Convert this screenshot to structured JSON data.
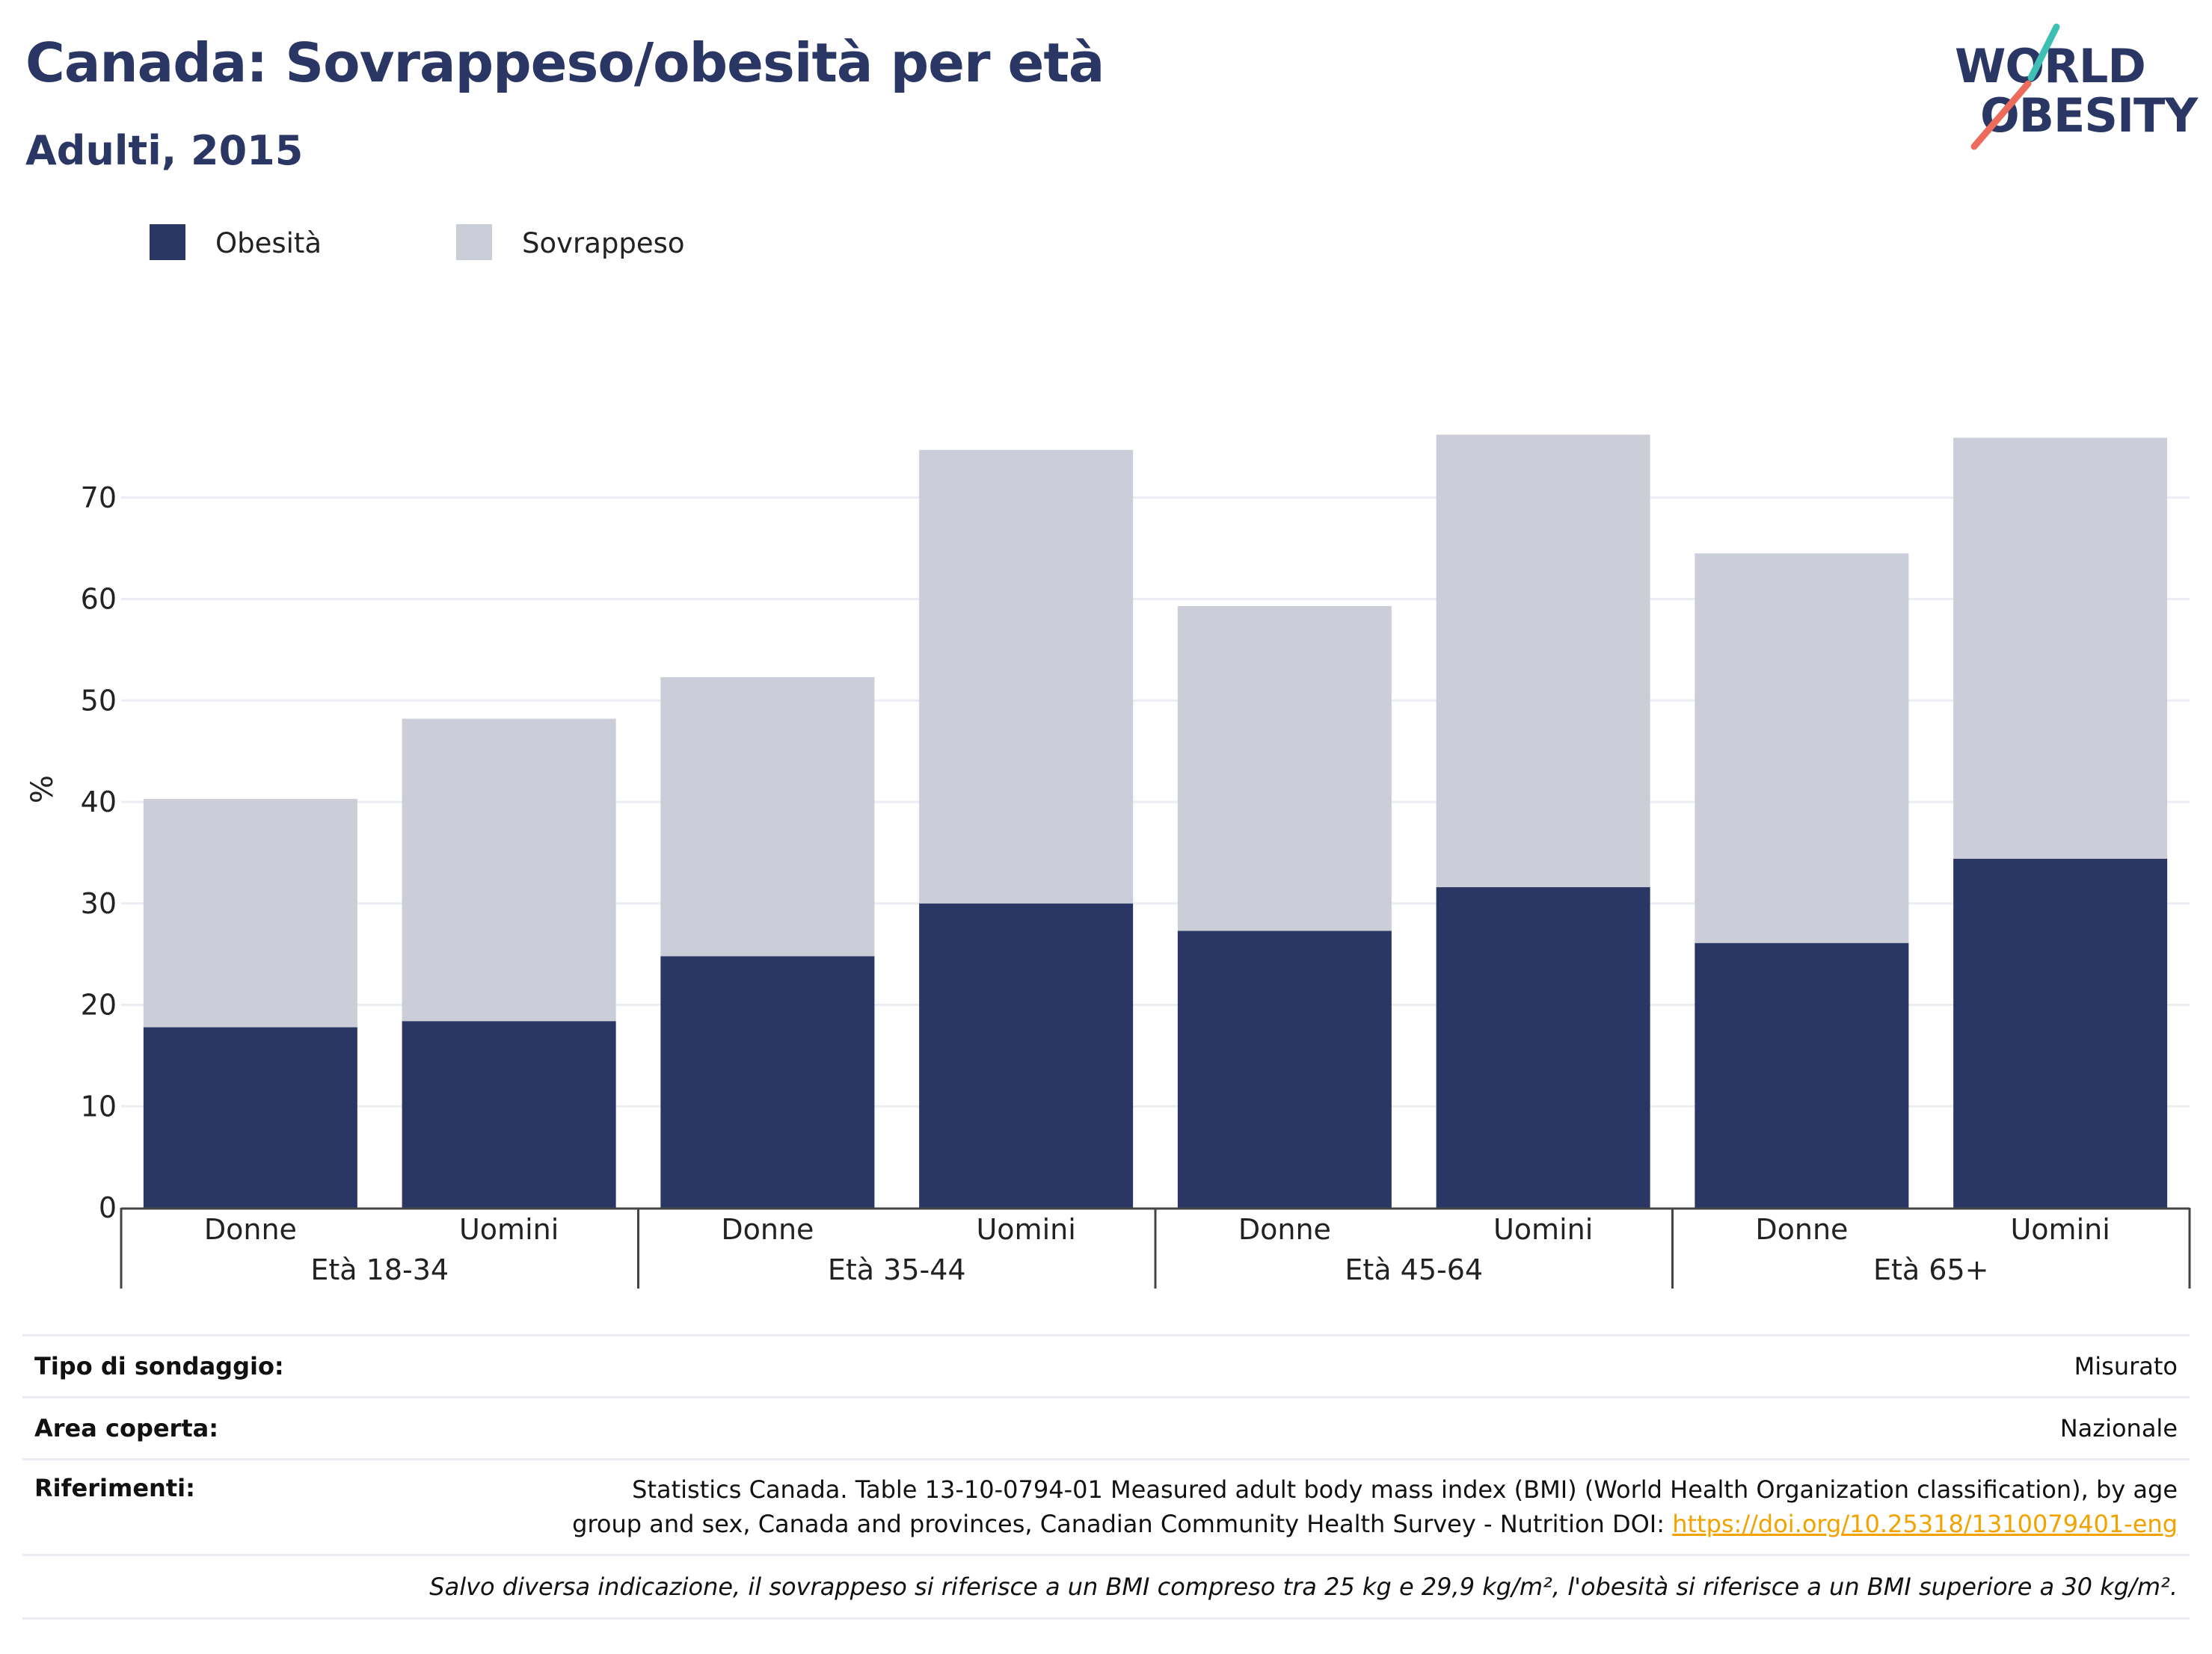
{
  "title": "Canada: Sovrappeso/obesità per età",
  "subtitle": "Adulti, 2015",
  "logo": {
    "line1": "WORLD",
    "line2": "OBESITY"
  },
  "colors": {
    "obesity": "#2a3663",
    "overweight": "#cbcdd8",
    "title": "#2a3663",
    "logo_teal": "#3dbfb3",
    "logo_coral": "#ec6b5a",
    "link": "#f2a300"
  },
  "legend": [
    {
      "label": "Obesità",
      "color": "#2a3663"
    },
    {
      "label": "Sovrappeso",
      "color": "#cbcdd8"
    }
  ],
  "chart_data": {
    "type": "bar",
    "stacked": true,
    "ylabel": "%",
    "ylim": [
      0,
      80
    ],
    "yticks": [
      0,
      10,
      20,
      30,
      40,
      50,
      60,
      70
    ],
    "grid": true,
    "legend_position": "top-left",
    "groups": [
      "Età 18-34",
      "Età 35-44",
      "Età 45-64",
      "Età 65+"
    ],
    "categories": [
      "Donne",
      "Uomini",
      "Donne",
      "Uomini",
      "Donne",
      "Uomini",
      "Donne",
      "Uomini"
    ],
    "series": [
      {
        "name": "Obesità",
        "values": [
          17.8,
          18.4,
          24.8,
          30.0,
          27.3,
          31.6,
          26.1,
          34.4
        ]
      },
      {
        "name": "Sovrappeso",
        "values": [
          22.5,
          29.8,
          27.5,
          44.7,
          32.0,
          44.6,
          38.4,
          41.5
        ]
      }
    ]
  },
  "info": {
    "survey_label": "Tipo di sondaggio:",
    "survey_value": "Misurato",
    "area_label": "Area coperta:",
    "area_value": "Nazionale",
    "refs_label": "Riferimenti:",
    "refs_line1": "Statistics Canada. Table 13-10-0794-01 Measured adult body mass index (BMI) (World Health Organization classification), by age",
    "refs_line2": "group and sex, Canada and provinces, Canadian Community Health Survey - Nutrition DOI: ",
    "refs_link": "https://doi.org/10.25318/1310079401-eng",
    "note": "Salvo diversa indicazione, il sovrappeso si riferisce a un BMI compreso tra 25 kg e 29,9 kg/m², l'obesità si riferisce a un BMI superiore a 30 kg/m²."
  }
}
